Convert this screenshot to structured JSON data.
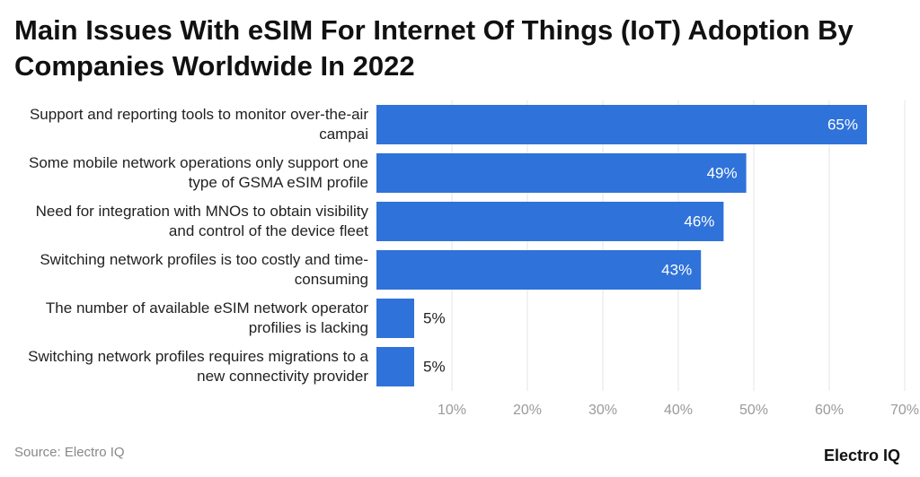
{
  "chart_data": {
    "type": "hbar",
    "title": "Main Issues With eSIM For Internet Of Things (IoT) Adoption By Companies Worldwide In 2022",
    "categories": [
      "Support and reporting tools to monitor over-the-air campai",
      "Some mobile network operations only support one type of GSMA eSIM profile",
      "Need for integration with MNOs to obtain visibility and control of the device fleet",
      "Switching network profiles is too costly and time-consuming",
      "The number of available eSIM network operator profilies is lacking",
      "Switching network profiles requires migrations to a new connectivity provider"
    ],
    "values": [
      65,
      49,
      46,
      43,
      5,
      5
    ],
    "value_labels": [
      "65%",
      "49%",
      "46%",
      "43%",
      "5%",
      "5%"
    ],
    "color": "#2f72d9",
    "xlim": [
      0,
      70
    ],
    "xticks": [
      {
        "value": 10,
        "label": "10%"
      },
      {
        "value": 20,
        "label": "20%"
      },
      {
        "value": 30,
        "label": "30%"
      },
      {
        "value": 40,
        "label": "40%"
      },
      {
        "value": 50,
        "label": "50%"
      },
      {
        "value": 60,
        "label": "60%"
      },
      {
        "value": 70,
        "label": "70%"
      }
    ],
    "grid": true,
    "source": "Source: Electro IQ",
    "brand": "Electro IQ"
  }
}
